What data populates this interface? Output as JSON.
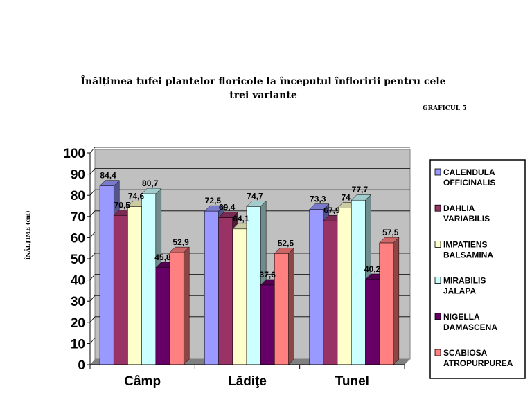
{
  "chart_data": {
    "type": "bar",
    "title": "Înălțimea tufei plantelor floricole la începutul înfloririi pentru cele trei variante",
    "figure_label": "GRAFICUL  5",
    "ylabel": "ÎNĂLȚIME (cm)",
    "xlabel": "",
    "ylim": [
      0,
      100
    ],
    "ytick_step": 10,
    "grid": true,
    "legend_position": "right",
    "categories": [
      "Câmp",
      "Lădiţe",
      "Tunel"
    ],
    "series": [
      {
        "name": "CALENDULA OFFICINALIS",
        "color": "#9999ff",
        "values": [
          84.4,
          72.5,
          73.3
        ],
        "labels": [
          "84,4",
          "72,5",
          "73,3"
        ]
      },
      {
        "name": "DAHLIA VARIABILIS",
        "color": "#993366",
        "values": [
          70.5,
          69.4,
          67.9
        ],
        "labels": [
          "70,5",
          "69,4",
          "67,9"
        ]
      },
      {
        "name": "IMPATIENS BALSAMINA",
        "color": "#ffffcc",
        "values": [
          74.6,
          64.1,
          74
        ],
        "labels": [
          "74,6",
          "64,1",
          "74"
        ]
      },
      {
        "name": "MIRABILIS JALAPA",
        "color": "#ccffff",
        "values": [
          80.7,
          74.7,
          77.7
        ],
        "labels": [
          "80,7",
          "74,7",
          "77,7"
        ]
      },
      {
        "name": "NIGELLA DAMASCENA",
        "color": "#660066",
        "values": [
          45.8,
          37.6,
          40.2
        ],
        "labels": [
          "45,8",
          "37,6",
          "40,2"
        ]
      },
      {
        "name": "SCABIOSA ATROPURPUREA",
        "color": "#ff8080",
        "values": [
          52.9,
          52.5,
          57.5
        ],
        "labels": [
          "52,9",
          "52,5",
          "57,5"
        ]
      }
    ],
    "legend_lines": [
      [
        "CALENDULA",
        "OFFICINALIS"
      ],
      [
        "DAHLIA",
        "VARIABILIS"
      ],
      [
        "IMPATIENS",
        "BALSAMINA"
      ],
      [
        " MIRABILIS",
        "JALAPA"
      ],
      [
        "NIGELLA",
        "DAMASCENA"
      ],
      [
        "SCABIOSA",
        "ATROPURPUREA"
      ]
    ]
  }
}
